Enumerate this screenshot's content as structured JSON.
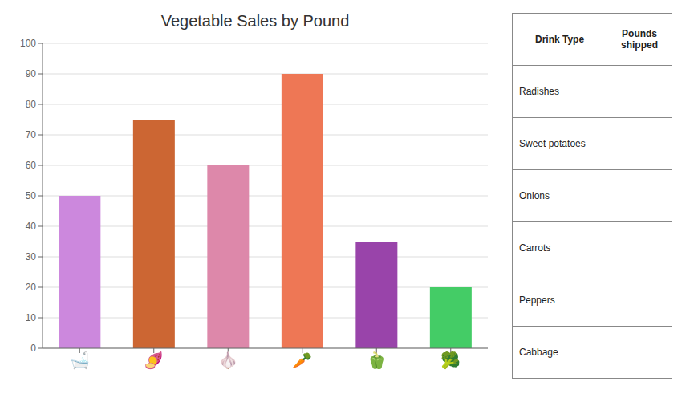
{
  "chart_data": {
    "type": "bar",
    "title": "Vegetable Sales by Pound",
    "categories": [
      "🛁",
      "🍠",
      "🧄",
      "🥕",
      "🫑",
      "🥦"
    ],
    "values": [
      50,
      75,
      60,
      90,
      35,
      20
    ],
    "colors": [
      "#cc88dd",
      "#cc6633",
      "#dd88aa",
      "#ee7755",
      "#9944aa",
      "#44cc66"
    ],
    "ylim": [
      0,
      100
    ],
    "yticks": [
      0,
      10,
      20,
      30,
      40,
      50,
      60,
      70,
      80,
      90,
      100
    ],
    "grid": true,
    "table": {
      "columns": [
        "Drink Type",
        "Pounds shipped"
      ],
      "rows": [
        "Radishes",
        "Sweet potatoes",
        "Onions",
        "Carrots",
        "Peppers",
        "Cabbage"
      ]
    }
  }
}
